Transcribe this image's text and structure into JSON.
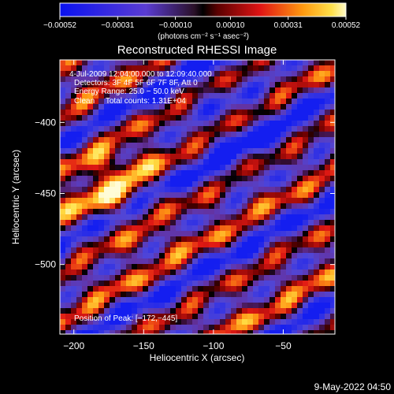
{
  "chart_data": {
    "type": "heatmap",
    "title": "Reconstructed RHESSI Image",
    "xlabel": "Heliocentric X (arcsec)",
    "ylabel": "Heliocentric Y (arcsec)",
    "xlim": [
      -210,
      -13
    ],
    "ylim": [
      -549,
      -356
    ],
    "x_ticks": [
      -200,
      -150,
      -100,
      -50
    ],
    "x_tick_labels": [
      "−200",
      "−150",
      "−100",
      "−50"
    ],
    "y_ticks": [
      -400,
      -450,
      -500
    ],
    "y_tick_labels": [
      "−400",
      "−450",
      "−500"
    ],
    "colorbar": {
      "ticks": [
        -0.00052,
        -0.00031,
        -0.0001,
        0.0001,
        0.00031,
        0.00052
      ],
      "tick_labels": [
        "−0.00052",
        "−0.00031",
        "−0.00010",
        "0.00010",
        "0.00031",
        "0.00052"
      ],
      "units": "(photons cm⁻² s⁻¹ asec⁻²)",
      "range": [
        -0.00052,
        0.00052
      ]
    },
    "annotations": [
      "4‑Jul‑2009 12:04:00.000 to 12:09:40.000",
      "Detectors: 3F 4F 5F 6F 7F 8F, Att 0",
      "Energy Range: 25.0 − 50.0 keV",
      "Clean     Total counts: 1.31E+04"
    ],
    "peak_label": "Position of Peak: [−172,−445]",
    "peak": [
      -172,
      -445
    ],
    "stripe_direction": "diagonal, descending left to right"
  },
  "footer": {
    "date": "9‑May‑2022 04:50"
  },
  "colors": {
    "background": "#000000",
    "axes": "#ffffff"
  }
}
